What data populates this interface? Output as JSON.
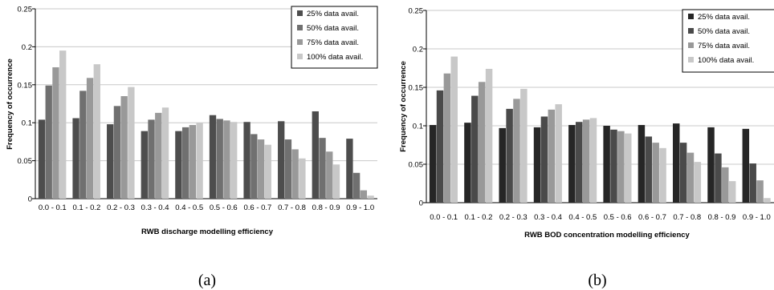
{
  "chart_data": [
    {
      "type": "bar",
      "panel_label": "(a)",
      "xlabel": "RWB discharge modelling efficiency",
      "ylabel": "Frequency of occurrence",
      "ylim": [
        0,
        0.25
      ],
      "yticks": [
        "0",
        "0.05",
        "0.1",
        "0.15",
        "0.2",
        "0.25"
      ],
      "grid": true,
      "legend_position": "top-right",
      "categories": [
        "0.0 - 0.1",
        "0.1 - 0.2",
        "0.2 - 0.3",
        "0.3 - 0.4",
        "0.4 - 0.5",
        "0.5 - 0.6",
        "0.6 - 0.7",
        "0.7 - 0.8",
        "0.8 - 0.9",
        "0.9 - 1.0"
      ],
      "series": [
        {
          "name": "25% data avail.",
          "color": "#4d4d4d",
          "values": [
            0.104,
            0.106,
            0.098,
            0.089,
            0.089,
            0.11,
            0.101,
            0.102,
            0.115,
            0.079
          ]
        },
        {
          "name": "50% data avail.",
          "color": "#707070",
          "values": [
            0.149,
            0.142,
            0.122,
            0.104,
            0.094,
            0.105,
            0.085,
            0.078,
            0.08,
            0.034
          ]
        },
        {
          "name": "75% data avail.",
          "color": "#999999",
          "values": [
            0.173,
            0.159,
            0.135,
            0.113,
            0.097,
            0.103,
            0.078,
            0.065,
            0.062,
            0.011
          ]
        },
        {
          "name": "100% data avail.",
          "color": "#c8c8c8",
          "values": [
            0.195,
            0.177,
            0.147,
            0.12,
            0.1,
            0.101,
            0.071,
            0.053,
            0.045,
            0.004
          ]
        }
      ]
    },
    {
      "type": "bar",
      "panel_label": "(b)",
      "xlabel": "RWB BOD concentration modelling efficiency",
      "ylabel": "Frequency of occurrence",
      "ylim": [
        0,
        0.25
      ],
      "yticks": [
        "0",
        "0.05",
        "0.1",
        "0.15",
        "0.2",
        "0.25"
      ],
      "grid": true,
      "legend_position": "top-right",
      "categories": [
        "0.0 - 0.1",
        "0.1 - 0.2",
        "0.2 - 0.3",
        "0.3 - 0.4",
        "0.4 - 0.5",
        "0.5 - 0.6",
        "0.6 - 0.7",
        "0.7 - 0.8",
        "0.8 - 0.9",
        "0.9 - 1.0"
      ],
      "series": [
        {
          "name": "25% data avail.",
          "color": "#262626",
          "values": [
            0.101,
            0.104,
            0.097,
            0.098,
            0.101,
            0.1,
            0.101,
            0.103,
            0.098,
            0.096
          ]
        },
        {
          "name": "50% data avail.",
          "color": "#4a4a4a",
          "values": [
            0.146,
            0.139,
            0.122,
            0.112,
            0.105,
            0.095,
            0.086,
            0.078,
            0.064,
            0.051
          ]
        },
        {
          "name": "75% data avail.",
          "color": "#999999",
          "values": [
            0.168,
            0.157,
            0.135,
            0.121,
            0.108,
            0.093,
            0.078,
            0.065,
            0.046,
            0.029
          ]
        },
        {
          "name": "100% data avail.",
          "color": "#c8c8c8",
          "values": [
            0.19,
            0.174,
            0.148,
            0.128,
            0.11,
            0.09,
            0.071,
            0.053,
            0.028,
            0.006
          ]
        }
      ]
    }
  ]
}
